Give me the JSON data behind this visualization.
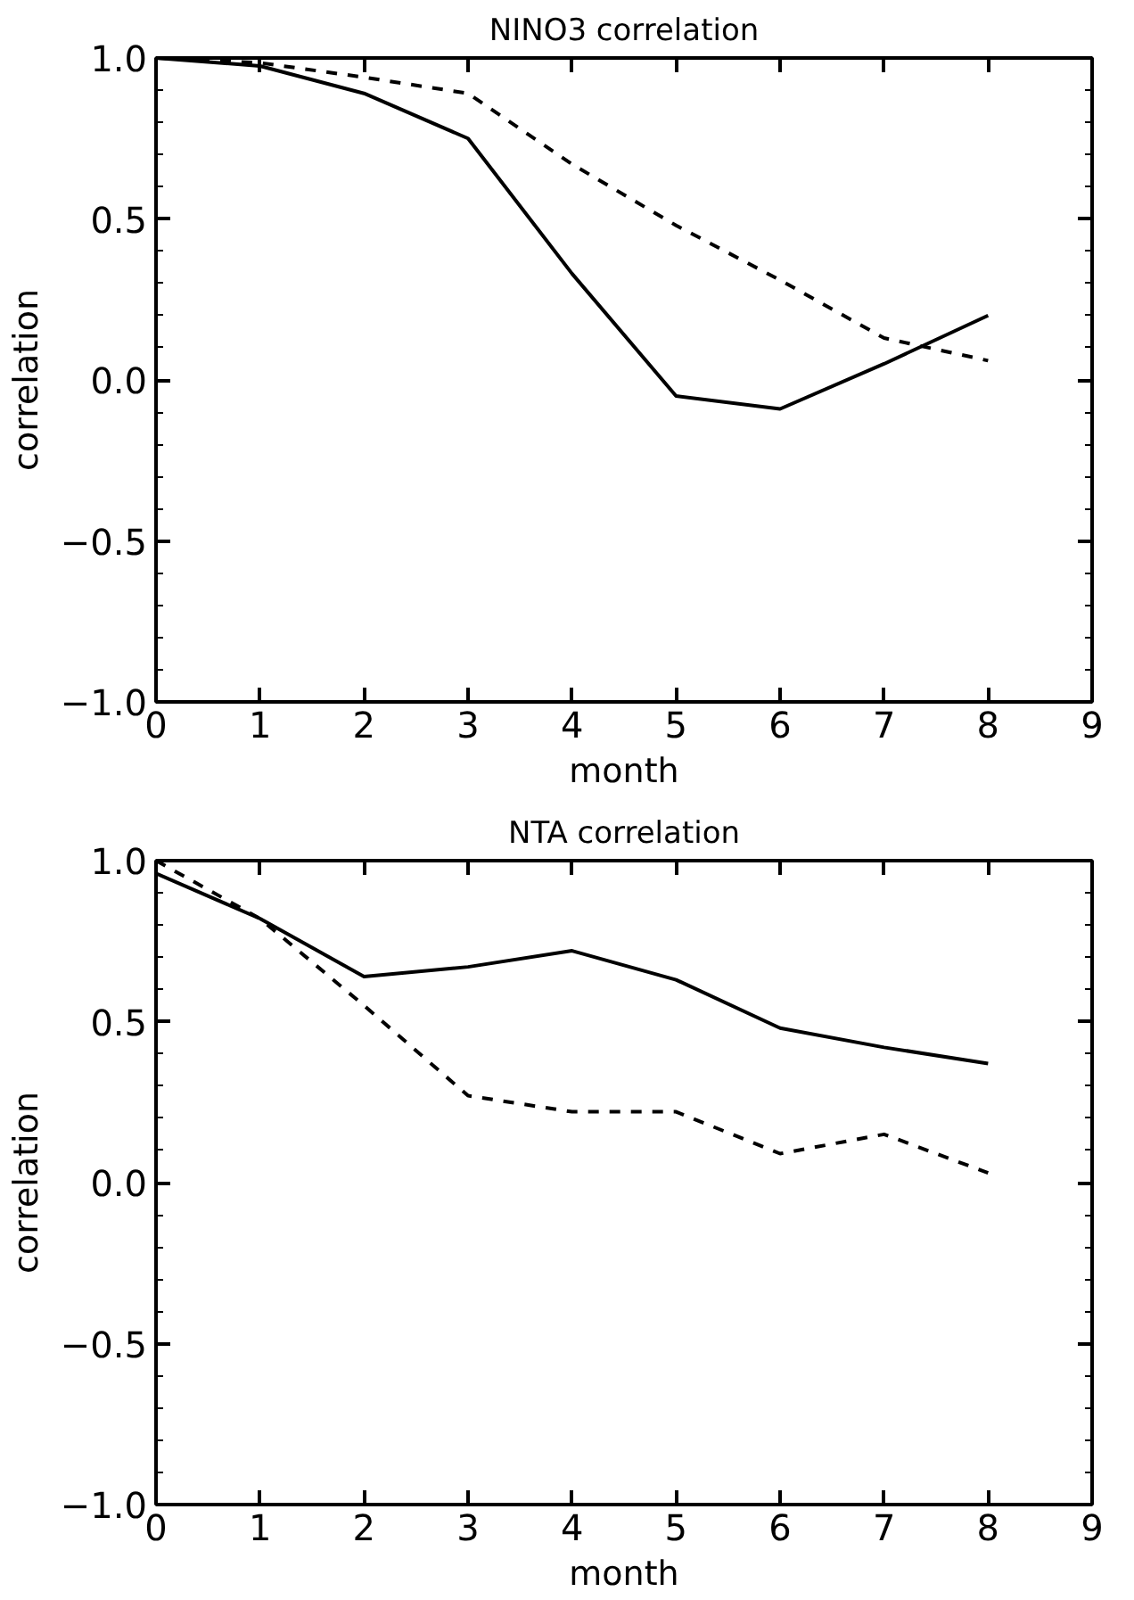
{
  "chart_data": [
    {
      "type": "line",
      "title": "NINO3 correlation",
      "xlabel": "month",
      "ylabel": "correlation",
      "x": [
        0,
        1,
        2,
        3,
        4,
        5,
        6,
        7,
        8
      ],
      "xlim": [
        0,
        9
      ],
      "xticks": [
        0,
        1,
        2,
        3,
        4,
        5,
        6,
        7,
        8,
        9
      ],
      "ylim": [
        -1,
        1
      ],
      "yticks": [
        {
          "value": -1,
          "label": "−1.0"
        },
        {
          "value": -0.5,
          "label": "−0.5"
        },
        {
          "value": 0,
          "label": "0.0"
        },
        {
          "value": 0.5,
          "label": "0.5"
        },
        {
          "value": 1,
          "label": "1.0"
        }
      ],
      "grid": false,
      "marker": "none",
      "series": [
        {
          "color": "#000000",
          "line_style": "solid",
          "values": [
            1.0,
            0.975,
            0.89,
            0.75,
            0.33,
            -0.05,
            -0.09,
            0.05,
            0.2
          ]
        },
        {
          "color": "#000000",
          "line_style": "dashed",
          "values": [
            1.0,
            0.985,
            0.94,
            0.89,
            0.67,
            0.48,
            0.31,
            0.13,
            0.06
          ]
        }
      ]
    },
    {
      "type": "line",
      "title": "NTA correlation",
      "xlabel": "month",
      "ylabel": "correlation",
      "x": [
        0,
        1,
        2,
        3,
        4,
        5,
        6,
        7,
        8
      ],
      "xlim": [
        0,
        9
      ],
      "xticks": [
        0,
        1,
        2,
        3,
        4,
        5,
        6,
        7,
        8,
        9
      ],
      "ylim": [
        -1,
        1
      ],
      "yticks": [
        {
          "value": -1,
          "label": "−1.0"
        },
        {
          "value": -0.5,
          "label": "−0.5"
        },
        {
          "value": 0,
          "label": "0.0"
        },
        {
          "value": 0.5,
          "label": "0.5"
        },
        {
          "value": 1,
          "label": "1.0"
        }
      ],
      "grid": false,
      "marker": "none",
      "series": [
        {
          "color": "#000000",
          "line_style": "solid",
          "values": [
            0.96,
            0.82,
            0.64,
            0.67,
            0.72,
            0.63,
            0.48,
            0.42,
            0.37
          ]
        },
        {
          "color": "#000000",
          "line_style": "dashed",
          "values": [
            1.0,
            0.82,
            0.55,
            0.27,
            0.22,
            0.22,
            0.09,
            0.15,
            0.03
          ]
        }
      ]
    }
  ]
}
